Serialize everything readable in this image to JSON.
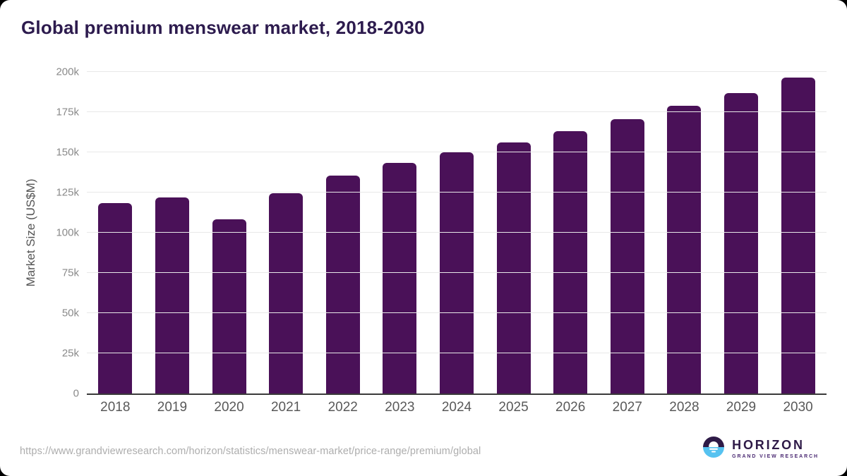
{
  "title": "Global premium menswear market, 2018-2030",
  "footer": {
    "source_url": "https://www.grandviewresearch.com/horizon/statistics/menswear-market/price-range/premium/global"
  },
  "logo": {
    "name": "HORIZON",
    "subtitle": "GRAND VIEW RESEARCH"
  },
  "colors": {
    "bar": "#4a1158",
    "title": "#2d1b4e",
    "axis_line": "#3a3a3a",
    "gridline": "#e8e8e8",
    "y_tick": "#8a8a8a",
    "x_tick": "#595959",
    "url": "#adadad",
    "logo_dark": "#2e1a47",
    "logo_blue": "#56c2f0",
    "logo_subtitle": "#4b2a73"
  },
  "chart_data": {
    "type": "bar",
    "title": "Global premium menswear market, 2018-2030",
    "categories": [
      "2018",
      "2019",
      "2020",
      "2021",
      "2022",
      "2023",
      "2024",
      "2025",
      "2026",
      "2027",
      "2028",
      "2029",
      "2030"
    ],
    "values": [
      118500,
      122000,
      108500,
      124500,
      135500,
      143500,
      150000,
      156000,
      163000,
      170500,
      179000,
      187000,
      196500
    ],
    "xlabel": "",
    "ylabel": "Market Size (US$M)",
    "ylim": [
      0,
      200000
    ],
    "yticks": [
      0,
      25000,
      50000,
      75000,
      100000,
      125000,
      150000,
      175000,
      200000
    ],
    "ytick_labels": [
      "0",
      "25k",
      "50k",
      "75k",
      "100k",
      "125k",
      "150k",
      "175k",
      "200k"
    ],
    "grid": true,
    "legend": false
  }
}
